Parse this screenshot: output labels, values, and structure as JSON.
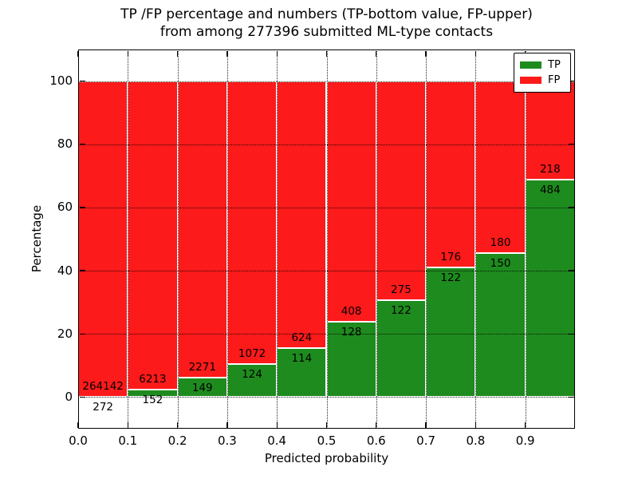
{
  "figure": {
    "title_line1": "TP /FP percentage and numbers (TP-bottom value, FP-upper)",
    "title_line2": "from among 277396 submitted ML-type contacts"
  },
  "chart_data": {
    "type": "bar",
    "stacked": true,
    "normalized": "each bar scaled to 100% (TP bottom green, FP top red)",
    "title": "TP /FP percentage and numbers (TP-bottom value, FP-upper) from among 277396 submitted ML-type contacts",
    "xlabel": "Predicted probability",
    "ylabel": "Percentage",
    "xtick_labels": [
      "0.0",
      "0.1",
      "0.2",
      "0.3",
      "0.4",
      "0.5",
      "0.6",
      "0.7",
      "0.8",
      "0.9"
    ],
    "yticks": [
      0,
      20,
      40,
      60,
      80,
      100
    ],
    "ytick_labels": [
      "0",
      "20",
      "40",
      "60",
      "80",
      "100"
    ],
    "xlim": [
      0.0,
      1.0
    ],
    "ylim": [
      -10,
      110
    ],
    "grid": true,
    "bin_width": 0.1,
    "series": [
      {
        "name": "TP",
        "color": "#1e8b1e",
        "counts": [
          272,
          152,
          149,
          124,
          114,
          128,
          122,
          122,
          150,
          484
        ]
      },
      {
        "name": "FP",
        "color": "#fd1a1a",
        "counts": [
          264142,
          6213,
          2271,
          1072,
          624,
          408,
          275,
          176,
          180,
          218
        ]
      }
    ],
    "tp_percent": [
      0.1,
      2.39,
      6.16,
      10.37,
      15.45,
      23.88,
      30.73,
      40.94,
      45.45,
      68.95
    ],
    "legend": {
      "position": "upper right",
      "entries": [
        {
          "label": "TP",
          "color": "#1e8b1e"
        },
        {
          "label": "FP",
          "color": "#fd1a1a"
        }
      ]
    }
  },
  "colors": {
    "tp_green": "#1e8b1e",
    "fp_red": "#fd1a1a",
    "text": "#000000",
    "background": "#ffffff",
    "bar_edge": "#ffffff"
  }
}
